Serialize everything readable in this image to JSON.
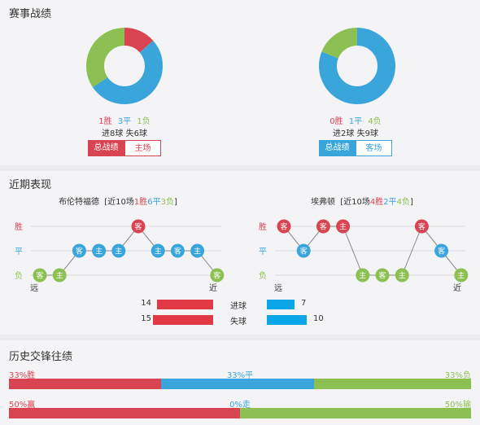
{
  "colors": {
    "win": "#d94452",
    "draw": "#3aa5db",
    "loss": "#8cc052",
    "home_bar": "#e13a46",
    "away_bar": "#0aa6e7"
  },
  "section1": {
    "title": "赛事战绩",
    "left": {
      "ratio": [
        0.135,
        0.52,
        0.345
      ],
      "wins": "1胜",
      "draws": "3平",
      "losses": "1负",
      "goals": "进8球  失6球",
      "btn_total": "总战绩",
      "btn_venue": "主场"
    },
    "right": {
      "ratio": [
        0.0,
        0.81,
        0.19
      ],
      "wins": "0胜",
      "draws": "1平",
      "losses": "4负",
      "goals": "进2球  失9球",
      "btn_total": "总战绩",
      "btn_venue": "客场"
    }
  },
  "section2": {
    "title": "近期表现",
    "left": {
      "team": "布伦特福德",
      "summary": [
        "[近10场",
        "1胜",
        "6平",
        "3负",
        "]"
      ],
      "results": [
        "loss",
        "loss",
        "draw",
        "draw",
        "draw",
        "win",
        "draw",
        "draw",
        "draw",
        "loss"
      ],
      "tags": [
        "客",
        "主",
        "客",
        "主",
        "主",
        "客",
        "主",
        "客",
        "主",
        "客"
      ],
      "far": "远",
      "near": "近"
    },
    "right": {
      "team": "埃弗顿",
      "summary": [
        "[近10场",
        "4胜",
        "2平",
        "4负",
        "]"
      ],
      "results": [
        "win",
        "draw",
        "win",
        "win",
        "loss",
        "loss",
        "loss",
        "win",
        "draw",
        "loss"
      ],
      "tags": [
        "客",
        "客",
        "客",
        "主",
        "主",
        "客",
        "主",
        "客",
        "客",
        "主"
      ],
      "far": "远",
      "near": "近"
    },
    "axis": {
      "win": "胜",
      "draw": "平",
      "loss": "负"
    },
    "goals": {
      "scored_label": "进球",
      "conceded_label": "失球",
      "home_scored": 14,
      "home_conceded": 15,
      "away_scored": 7,
      "away_conceded": 10
    }
  },
  "section3": {
    "title": "历史交锋往绩",
    "row1": {
      "win": "33%胜",
      "draw": "33%平",
      "loss": "33%负",
      "split": [
        0.33,
        0.33,
        0.34
      ]
    },
    "row2": {
      "win": "50%赢",
      "draw": "0%走",
      "loss": "50%输",
      "split": [
        0.5,
        0.0,
        0.5
      ]
    }
  }
}
